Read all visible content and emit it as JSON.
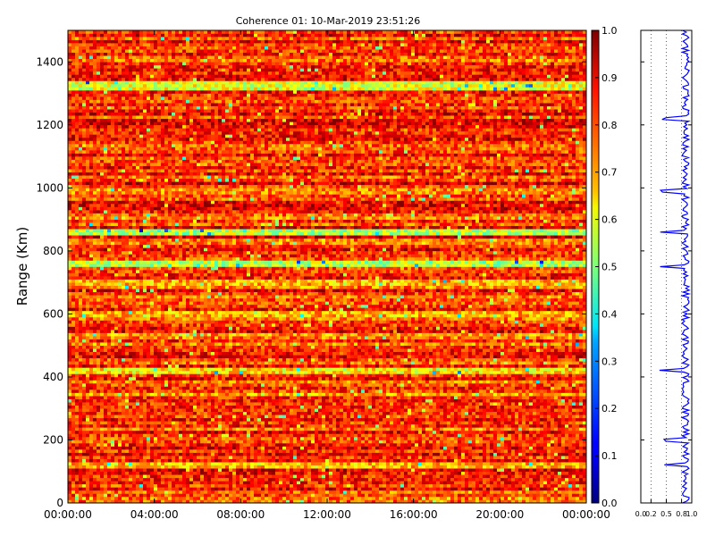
{
  "chart_data": {
    "type": "heatmap",
    "title": "Coherence 01: 10-Mar-2019 23:51:26",
    "ylabel": "Range (Km)",
    "xlabel": "",
    "x_ticks": [
      "00:00:00",
      "04:00:00",
      "08:00:00",
      "12:00:00",
      "16:00:00",
      "20:00:00",
      "00:00:00"
    ],
    "ylim": [
      0,
      1500
    ],
    "y_ticks": [
      "0",
      "200",
      "400",
      "600",
      "800",
      "1000",
      "1200",
      "1400"
    ],
    "colorbar": {
      "range": [
        0.0,
        1.0
      ],
      "ticks": [
        "0.0",
        "0.1",
        "0.2",
        "0.3",
        "0.4",
        "0.5",
        "0.6",
        "0.7",
        "0.8",
        "0.9",
        "1.0"
      ],
      "colormap": "jet"
    },
    "grid": false,
    "profile": {
      "type": "line",
      "color": "#0000ff",
      "xlim": [
        0.0,
        1.0
      ],
      "x_ticks": [
        "0.0",
        "0.2",
        "0.5",
        "0.8",
        "1.0"
      ],
      "mean_coherence": 0.88,
      "low_coherence_ranges_km": [
        120,
        200,
        420,
        750,
        860,
        990,
        1220
      ]
    },
    "low_coherence_bands_km": [
      {
        "range_km": 120,
        "mean": 0.6
      },
      {
        "range_km": 200,
        "mean": 0.7
      },
      {
        "range_km": 345,
        "mean": 0.65
      },
      {
        "range_km": 420,
        "mean": 0.55
      },
      {
        "range_km": 600,
        "mean": 0.6
      },
      {
        "range_km": 700,
        "mean": 0.6
      },
      {
        "range_km": 760,
        "mean": 0.45
      },
      {
        "range_km": 860,
        "mean": 0.45
      },
      {
        "range_km": 990,
        "mean": 0.65
      },
      {
        "range_km": 1120,
        "mean": 0.7
      },
      {
        "range_km": 1320,
        "mean": 0.5
      },
      {
        "range_km": 1335,
        "mean": 0.5
      }
    ]
  }
}
